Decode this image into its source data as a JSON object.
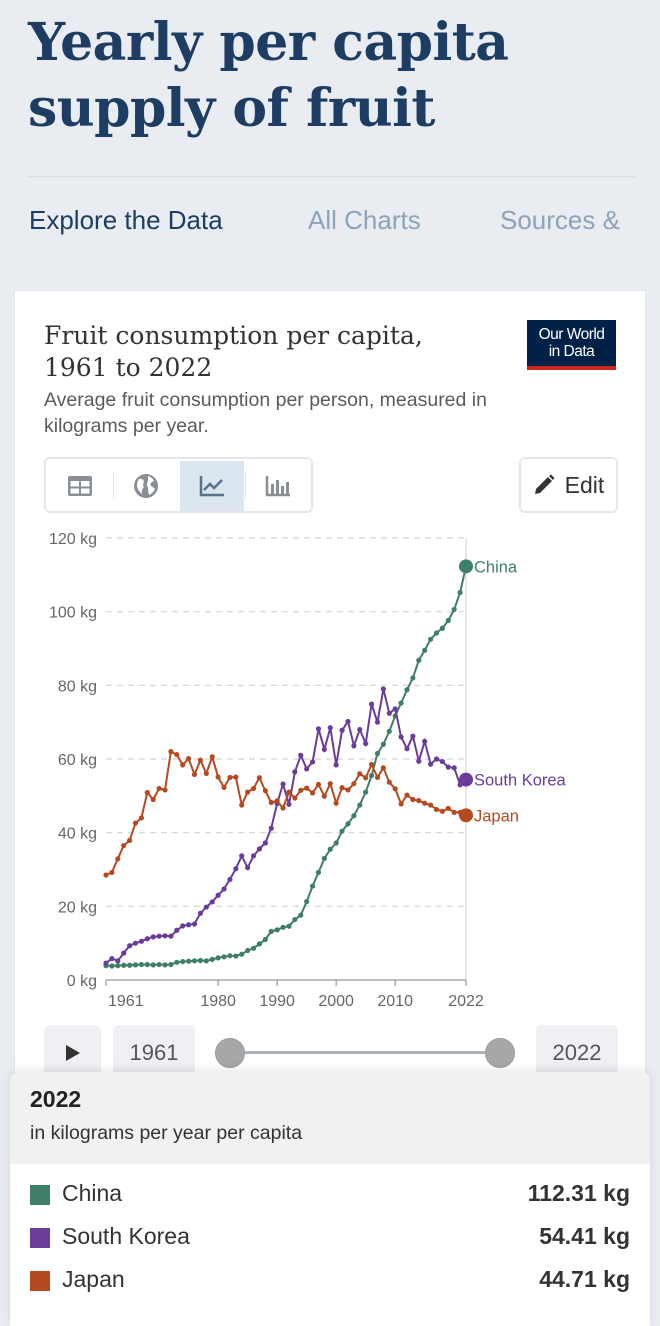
{
  "page": {
    "title_line1": "Yearly per capita",
    "title_line2": "supply of fruit",
    "tabs": [
      "Explore the Data",
      "All Charts",
      "Sources &"
    ]
  },
  "logo": {
    "line1": "Our World",
    "line2": "in Data"
  },
  "controls": {
    "tab_icons": [
      "table-icon",
      "globe-icon",
      "line-chart-icon",
      "bar-chart-icon"
    ],
    "edit_label": "Edit"
  },
  "timeline": {
    "start": "1961",
    "end": "2022"
  },
  "tooltip": {
    "year": "2022",
    "unit": "in kilograms per year per capita",
    "rows": [
      {
        "name": "China",
        "value": "112.31 kg",
        "color": "#3f7f6a"
      },
      {
        "name": "South Korea",
        "value": "54.41 kg",
        "color": "#6a3d9a"
      },
      {
        "name": "Japan",
        "value": "44.71 kg",
        "color": "#b54a20"
      }
    ]
  },
  "chart_data": {
    "type": "line",
    "title": "Fruit consumption per capita, 1961 to 2022",
    "title_lines": [
      "Fruit consumption per capita,",
      "1961 to 2022"
    ],
    "subtitle": "Average fruit consumption per person, measured in kilograms per year.",
    "subtitle_lines": [
      "Average fruit consumption per person, measured in",
      "kilograms per year."
    ],
    "xlabel": "",
    "ylabel": "",
    "xlim": [
      1961,
      2022
    ],
    "ylim": [
      0,
      120
    ],
    "y_ticks": [
      0,
      20,
      40,
      60,
      80,
      100,
      120
    ],
    "y_tick_labels": [
      "0 kg",
      "20 kg",
      "40 kg",
      "60 kg",
      "80 kg",
      "100 kg",
      "120 kg"
    ],
    "x_ticks": [
      1961,
      1980,
      1990,
      2000,
      2010,
      2022
    ],
    "x_tick_labels": [
      "1961",
      "1980",
      "1990",
      "2000",
      "2010",
      "2022"
    ],
    "grid": "horizontal dashed",
    "x": [
      1961,
      1962,
      1963,
      1964,
      1965,
      1966,
      1967,
      1968,
      1969,
      1970,
      1971,
      1972,
      1973,
      1974,
      1975,
      1976,
      1977,
      1978,
      1979,
      1980,
      1981,
      1982,
      1983,
      1984,
      1985,
      1986,
      1987,
      1988,
      1989,
      1990,
      1991,
      1992,
      1993,
      1994,
      1995,
      1996,
      1997,
      1998,
      1999,
      2000,
      2001,
      2002,
      2003,
      2004,
      2005,
      2006,
      2007,
      2008,
      2009,
      2010,
      2011,
      2012,
      2013,
      2014,
      2015,
      2016,
      2017,
      2018,
      2019,
      2020,
      2021,
      2022
    ],
    "series": [
      {
        "name": "China",
        "color": "#3f7f6a",
        "values": [
          3.9,
          3.8,
          3.9,
          4.0,
          4.0,
          4.1,
          4.2,
          4.2,
          4.1,
          4.2,
          4.1,
          4.2,
          4.8,
          5.0,
          5.1,
          5.2,
          5.3,
          5.2,
          5.6,
          6.0,
          6.3,
          6.6,
          6.5,
          7.0,
          8.0,
          8.6,
          9.8,
          11.0,
          13.2,
          13.6,
          14.3,
          14.6,
          16.4,
          17.6,
          21.3,
          25.5,
          29.2,
          33.0,
          35.5,
          37.2,
          40.4,
          42.4,
          44.6,
          47.5,
          51.0,
          55.5,
          61.5,
          64.0,
          67.5,
          71.7,
          75.2,
          78.8,
          82.0,
          86.8,
          89.5,
          92.5,
          94.2,
          95.5,
          97.6,
          100.6,
          105.2,
          112.31
        ]
      },
      {
        "name": "South Korea",
        "color": "#6a3d9a",
        "values": [
          4.6,
          5.8,
          5.2,
          7.3,
          9.3,
          10.0,
          10.5,
          11.2,
          11.7,
          11.9,
          12.0,
          11.9,
          13.5,
          14.7,
          15.0,
          15.2,
          18.1,
          19.8,
          21.2,
          23.0,
          24.7,
          27.3,
          30.2,
          33.7,
          30.5,
          33.7,
          35.6,
          37.2,
          41.2,
          47.9,
          53.2,
          47.7,
          56.5,
          61.0,
          57.3,
          59.2,
          68.2,
          62.6,
          68.5,
          58.4,
          67.8,
          70.2,
          63.6,
          68.0,
          64.2,
          74.9,
          70.0,
          79.0,
          72.4,
          73.6,
          66.0,
          62.8,
          66.2,
          59.4,
          64.8,
          58.6,
          60.0,
          59.3,
          57.8,
          57.6,
          53.0,
          54.41
        ]
      },
      {
        "name": "Japan",
        "color": "#b54a20",
        "values": [
          28.5,
          29.2,
          32.9,
          36.5,
          37.9,
          42.6,
          44.0,
          50.9,
          49.0,
          52.0,
          51.6,
          62.0,
          61.2,
          58.4,
          60.1,
          55.8,
          59.7,
          56.1,
          60.6,
          55.1,
          52.3,
          55.0,
          55.1,
          47.5,
          51.0,
          52.0,
          54.9,
          51.4,
          48.2,
          48.6,
          46.7,
          51.0,
          49.4,
          51.5,
          52.1,
          50.8,
          53.1,
          49.9,
          53.3,
          48.0,
          52.2,
          51.6,
          53.3,
          56.0,
          54.9,
          58.5,
          55.0,
          57.6,
          53.7,
          51.9,
          47.8,
          50.2,
          49.0,
          48.7,
          48.0,
          47.5,
          46.3,
          45.8,
          46.6,
          45.5,
          45.5,
          44.71
        ]
      }
    ]
  }
}
